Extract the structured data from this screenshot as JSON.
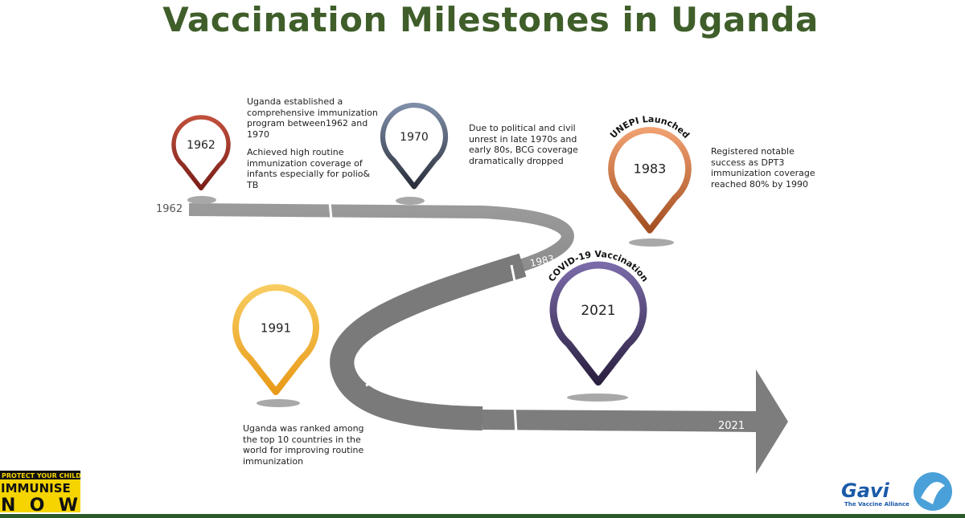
{
  "title": "Vaccination Milestones in Uganda",
  "milestones": [
    {
      "year": "1962",
      "text": [
        "Uganda established a comprehensive immunization program between1962 and 1970",
        "Achieved high routine immunization coverage of infants especially for polio& TB"
      ]
    },
    {
      "year": "1970",
      "text": [
        "Due to political and civil unrest in late 1970s and early 80s, BCG coverage dramatically dropped"
      ]
    },
    {
      "year": "1983",
      "label": "UNEPI Launched",
      "text": [
        "Registered notable success as DPT3 immunization coverage reached 80% by 1990"
      ]
    },
    {
      "year": "1991",
      "text": [
        "Uganda was ranked among the top 10 countries in the world for improving routine immunization"
      ]
    },
    {
      "year": "2021",
      "label": "COVID-19 Vaccination"
    }
  ],
  "road_labels": [
    "1962",
    "1983",
    "2021"
  ],
  "logos": {
    "immunise": {
      "tagline": "PROTECT YOUR CHILD",
      "line1": "IMMUNISE",
      "line2": "NOW"
    },
    "gavi": {
      "name": "Gavi",
      "tagline": "The Vaccine Alliance"
    }
  }
}
